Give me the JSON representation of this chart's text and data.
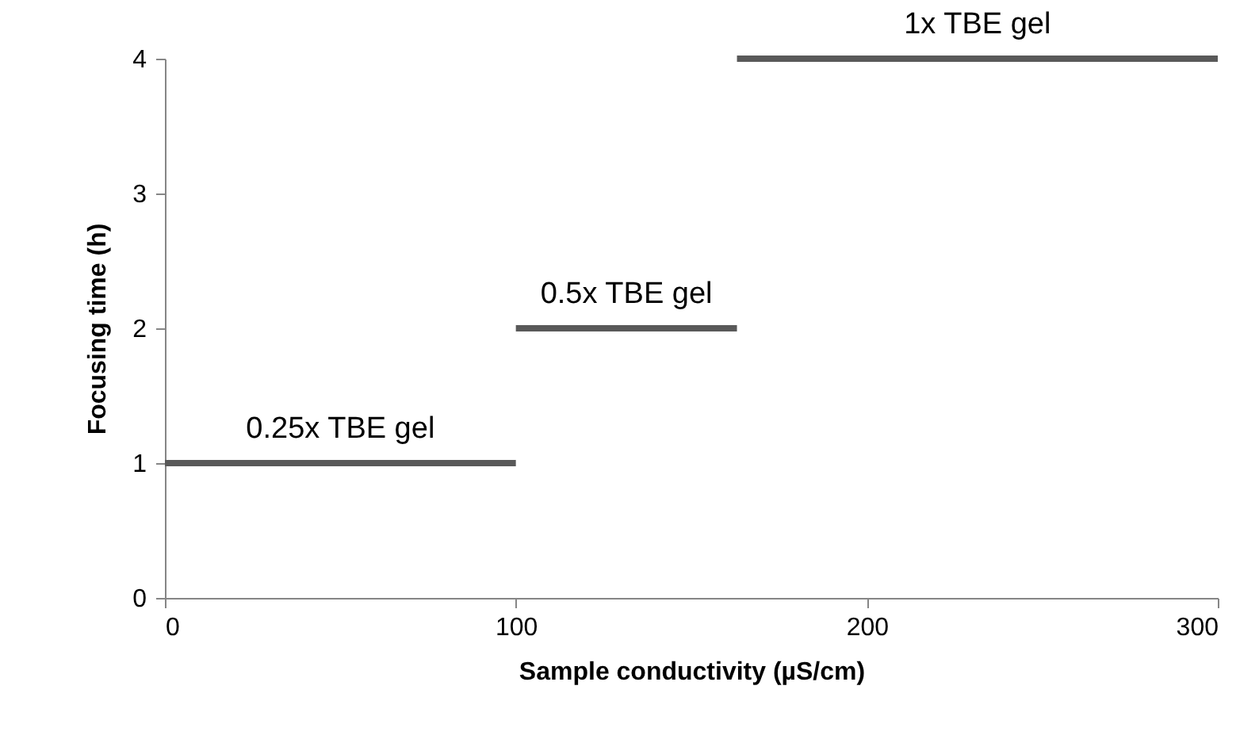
{
  "chart_data": {
    "type": "line",
    "xlabel": "Sample conductivity (µS/cm)",
    "ylabel": "Focusing time (h)",
    "xlim": [
      0,
      300
    ],
    "xticks": [
      0,
      100,
      200,
      300
    ],
    "ylim": [
      0,
      4
    ],
    "yticks": [
      0,
      1,
      2,
      3,
      4
    ],
    "grid": false,
    "legend": false,
    "marker": "none",
    "series": [
      {
        "name": "0.25x TBE gel",
        "color": "#595959",
        "x": [
          0,
          100
        ],
        "values": [
          1,
          1
        ]
      },
      {
        "name": "0.5x TBE gel",
        "color": "#595959",
        "x": [
          100,
          163
        ],
        "values": [
          2,
          2
        ]
      },
      {
        "name": "1x TBE gel",
        "color": "#595959",
        "x": [
          163,
          300
        ],
        "values": [
          4,
          4
        ]
      }
    ]
  }
}
